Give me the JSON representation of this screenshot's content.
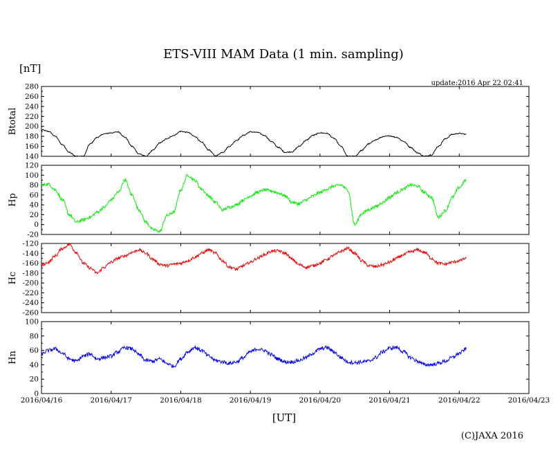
{
  "chart_data": {
    "type": "line",
    "title": "ETS-VIII MAM Data (1 min. sampling)",
    "unit_label": "[nT]",
    "update_label": "update:2016 Apr 22 02:41",
    "xlabel": "[UT]",
    "credit": "(C)JAXA 2016",
    "x_ticks": [
      "2016/04/16",
      "2016/04/17",
      "2016/04/18",
      "2016/04/19",
      "2016/04/20",
      "2016/04/21",
      "2016/04/22",
      "2016/04/23"
    ],
    "xlim_days": [
      0,
      7
    ],
    "grid": false,
    "panels": [
      {
        "name": "Btotal",
        "color": "#000000",
        "ylim": [
          140,
          280
        ],
        "yticks": [
          140,
          160,
          180,
          200,
          220,
          240,
          260,
          280
        ],
        "noise": 1.0,
        "x": [
          0.0,
          0.1,
          0.2,
          0.3,
          0.4,
          0.5,
          0.6,
          0.7,
          0.8,
          0.9,
          1.0,
          1.1,
          1.2,
          1.3,
          1.4,
          1.5,
          1.6,
          1.7,
          1.8,
          1.9,
          2.0,
          2.1,
          2.2,
          2.3,
          2.4,
          2.5,
          2.6,
          2.7,
          2.8,
          2.9,
          3.0,
          3.1,
          3.2,
          3.3,
          3.4,
          3.5,
          3.6,
          3.7,
          3.8,
          3.9,
          4.0,
          4.1,
          4.2,
          4.3,
          4.4,
          4.5,
          4.6,
          4.7,
          4.8,
          4.9,
          5.0,
          5.1,
          5.2,
          5.3,
          5.4,
          5.5,
          5.6,
          5.7,
          5.8,
          5.9,
          6.0,
          6.1
        ],
        "y": [
          193,
          190,
          180,
          163,
          148,
          140,
          140,
          165,
          178,
          185,
          187,
          189,
          178,
          160,
          145,
          140,
          152,
          167,
          175,
          182,
          190,
          188,
          180,
          168,
          153,
          141,
          148,
          160,
          172,
          182,
          189,
          188,
          182,
          170,
          158,
          148,
          149,
          160,
          172,
          182,
          187,
          186,
          176,
          160,
          140,
          140,
          152,
          165,
          173,
          179,
          181,
          178,
          170,
          158,
          147,
          140,
          143,
          160,
          175,
          184,
          186,
          184
        ]
      },
      {
        "name": "Hp",
        "color": "#00ee00",
        "ylim": [
          -20,
          120
        ],
        "yticks": [
          -20,
          0,
          20,
          40,
          60,
          80,
          100,
          120
        ],
        "noise": 3.0,
        "x": [
          0.0,
          0.1,
          0.2,
          0.3,
          0.4,
          0.5,
          0.6,
          0.7,
          0.8,
          0.9,
          1.0,
          1.1,
          1.2,
          1.3,
          1.4,
          1.5,
          1.6,
          1.7,
          1.8,
          1.9,
          2.0,
          2.1,
          2.2,
          2.3,
          2.4,
          2.5,
          2.6,
          2.7,
          2.8,
          2.9,
          3.0,
          3.1,
          3.2,
          3.3,
          3.4,
          3.5,
          3.6,
          3.7,
          3.8,
          3.9,
          4.0,
          4.1,
          4.2,
          4.3,
          4.4,
          4.5,
          4.6,
          4.7,
          4.8,
          4.9,
          5.0,
          5.1,
          5.2,
          5.3,
          5.4,
          5.5,
          5.6,
          5.7,
          5.8,
          5.9,
          6.0,
          6.1
        ],
        "y": [
          80,
          82,
          70,
          50,
          20,
          5,
          10,
          15,
          25,
          35,
          50,
          65,
          90,
          60,
          30,
          5,
          -10,
          -14,
          18,
          25,
          70,
          100,
          90,
          72,
          58,
          45,
          30,
          35,
          40,
          50,
          58,
          65,
          70,
          68,
          64,
          58,
          45,
          42,
          50,
          58,
          65,
          72,
          78,
          80,
          70,
          0,
          22,
          30,
          36,
          45,
          55,
          65,
          72,
          80,
          78,
          65,
          55,
          15,
          28,
          55,
          75,
          90
        ]
      },
      {
        "name": "Hc",
        "color": "#ee0000",
        "ylim": [
          -260,
          -120
        ],
        "yticks": [
          -260,
          -240,
          -220,
          -200,
          -180,
          -160,
          -140,
          -120
        ],
        "noise": 3.0,
        "x": [
          0.0,
          0.1,
          0.2,
          0.3,
          0.4,
          0.5,
          0.6,
          0.7,
          0.8,
          0.9,
          1.0,
          1.1,
          1.2,
          1.3,
          1.4,
          1.5,
          1.6,
          1.7,
          1.8,
          1.9,
          2.0,
          2.1,
          2.2,
          2.3,
          2.4,
          2.5,
          2.6,
          2.7,
          2.8,
          2.9,
          3.0,
          3.1,
          3.2,
          3.3,
          3.4,
          3.5,
          3.6,
          3.7,
          3.8,
          3.9,
          4.0,
          4.1,
          4.2,
          4.3,
          4.4,
          4.5,
          4.6,
          4.7,
          4.8,
          4.9,
          5.0,
          5.1,
          5.2,
          5.3,
          5.4,
          5.5,
          5.6,
          5.7,
          5.8,
          5.9,
          6.0,
          6.1
        ],
        "y": [
          -165,
          -158,
          -145,
          -130,
          -122,
          -138,
          -160,
          -170,
          -180,
          -168,
          -158,
          -150,
          -145,
          -138,
          -133,
          -140,
          -152,
          -162,
          -165,
          -162,
          -160,
          -155,
          -148,
          -140,
          -133,
          -140,
          -155,
          -168,
          -172,
          -165,
          -158,
          -150,
          -143,
          -136,
          -135,
          -140,
          -152,
          -163,
          -168,
          -165,
          -160,
          -152,
          -144,
          -136,
          -130,
          -140,
          -155,
          -165,
          -167,
          -163,
          -158,
          -150,
          -143,
          -137,
          -133,
          -138,
          -150,
          -160,
          -162,
          -158,
          -155,
          -150
        ]
      },
      {
        "name": "Hn",
        "color": "#0000ee",
        "ylim": [
          0,
          100
        ],
        "yticks": [
          0,
          20,
          40,
          60,
          80,
          100
        ],
        "noise": 2.5,
        "x": [
          0.0,
          0.1,
          0.2,
          0.3,
          0.4,
          0.5,
          0.6,
          0.7,
          0.8,
          0.9,
          1.0,
          1.1,
          1.2,
          1.3,
          1.4,
          1.5,
          1.6,
          1.7,
          1.8,
          1.9,
          2.0,
          2.1,
          2.2,
          2.3,
          2.4,
          2.5,
          2.6,
          2.7,
          2.8,
          2.9,
          3.0,
          3.1,
          3.2,
          3.3,
          3.4,
          3.5,
          3.6,
          3.7,
          3.8,
          3.9,
          4.0,
          4.1,
          4.2,
          4.3,
          4.4,
          4.5,
          4.6,
          4.7,
          4.8,
          4.9,
          5.0,
          5.1,
          5.2,
          5.3,
          5.4,
          5.5,
          5.6,
          5.7,
          5.8,
          5.9,
          6.0,
          6.1
        ],
        "y": [
          55,
          60,
          62,
          56,
          48,
          45,
          52,
          55,
          48,
          50,
          52,
          58,
          64,
          62,
          54,
          46,
          45,
          48,
          42,
          38,
          48,
          58,
          64,
          60,
          52,
          46,
          44,
          42,
          44,
          50,
          58,
          62,
          60,
          54,
          48,
          44,
          44,
          46,
          50,
          56,
          62,
          64,
          58,
          50,
          44,
          43,
          44,
          45,
          50,
          58,
          63,
          64,
          58,
          50,
          45,
          40,
          40,
          42,
          45,
          50,
          56,
          62
        ]
      }
    ]
  }
}
